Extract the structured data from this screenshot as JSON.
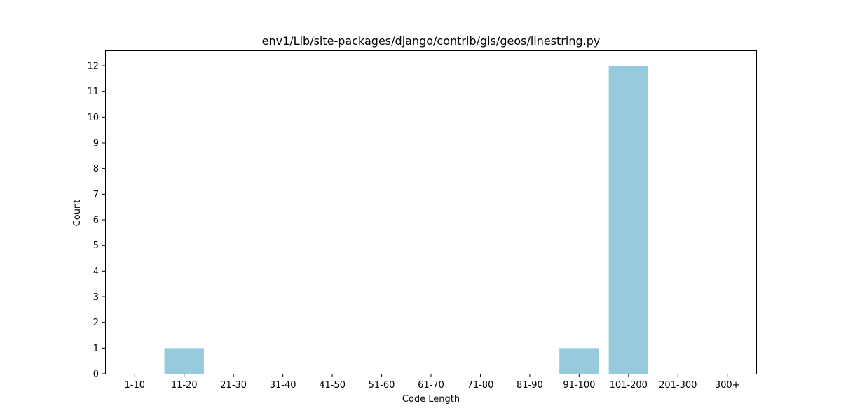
{
  "chart_data": {
    "type": "bar",
    "title": "env1/Lib/site-packages/django/contrib/gis/geos/linestring.py",
    "xlabel": "Code Length",
    "ylabel": "Count",
    "categories": [
      "1-10",
      "11-20",
      "21-30",
      "31-40",
      "41-50",
      "51-60",
      "61-70",
      "71-80",
      "81-90",
      "91-100",
      "101-200",
      "201-300",
      "300+"
    ],
    "values": [
      0,
      1,
      0,
      0,
      0,
      0,
      0,
      0,
      0,
      1,
      12,
      0,
      0
    ],
    "ylim": [
      0,
      12.6
    ],
    "yticks": [
      0,
      1,
      2,
      3,
      4,
      5,
      6,
      7,
      8,
      9,
      10,
      11,
      12
    ],
    "bar_color": "#96cadd",
    "grid": false,
    "legend": "none"
  }
}
